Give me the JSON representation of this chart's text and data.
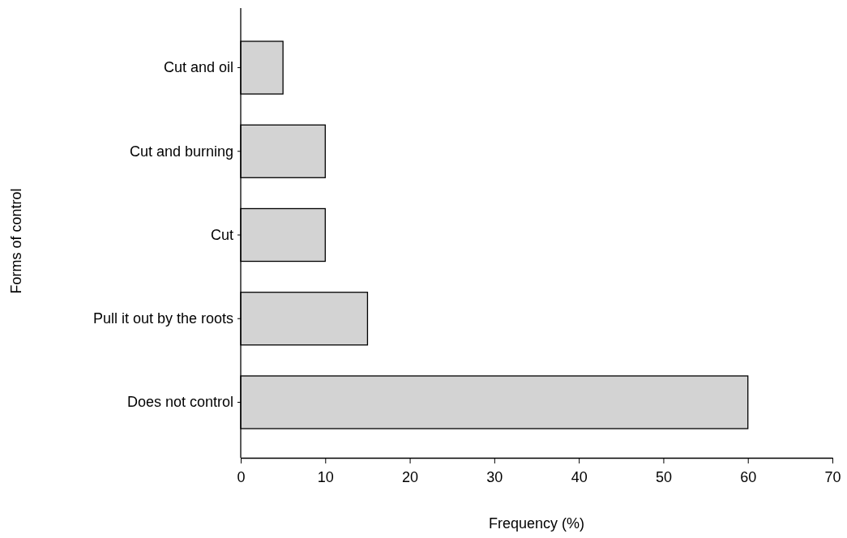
{
  "chart_data": {
    "type": "bar",
    "orientation": "horizontal",
    "xlabel": "Frequency (%)",
    "ylabel": "Forms of control",
    "categories": [
      "Cut and oil",
      "Cut and burning",
      "Cut",
      "Pull it out by the roots",
      "Does not control"
    ],
    "values": [
      5,
      10,
      10,
      15,
      60
    ],
    "color": "#d3d3d3",
    "xlim": [
      0,
      70
    ],
    "xticks": [
      0,
      10,
      20,
      30,
      40,
      50,
      60,
      70
    ],
    "grid": false
  }
}
